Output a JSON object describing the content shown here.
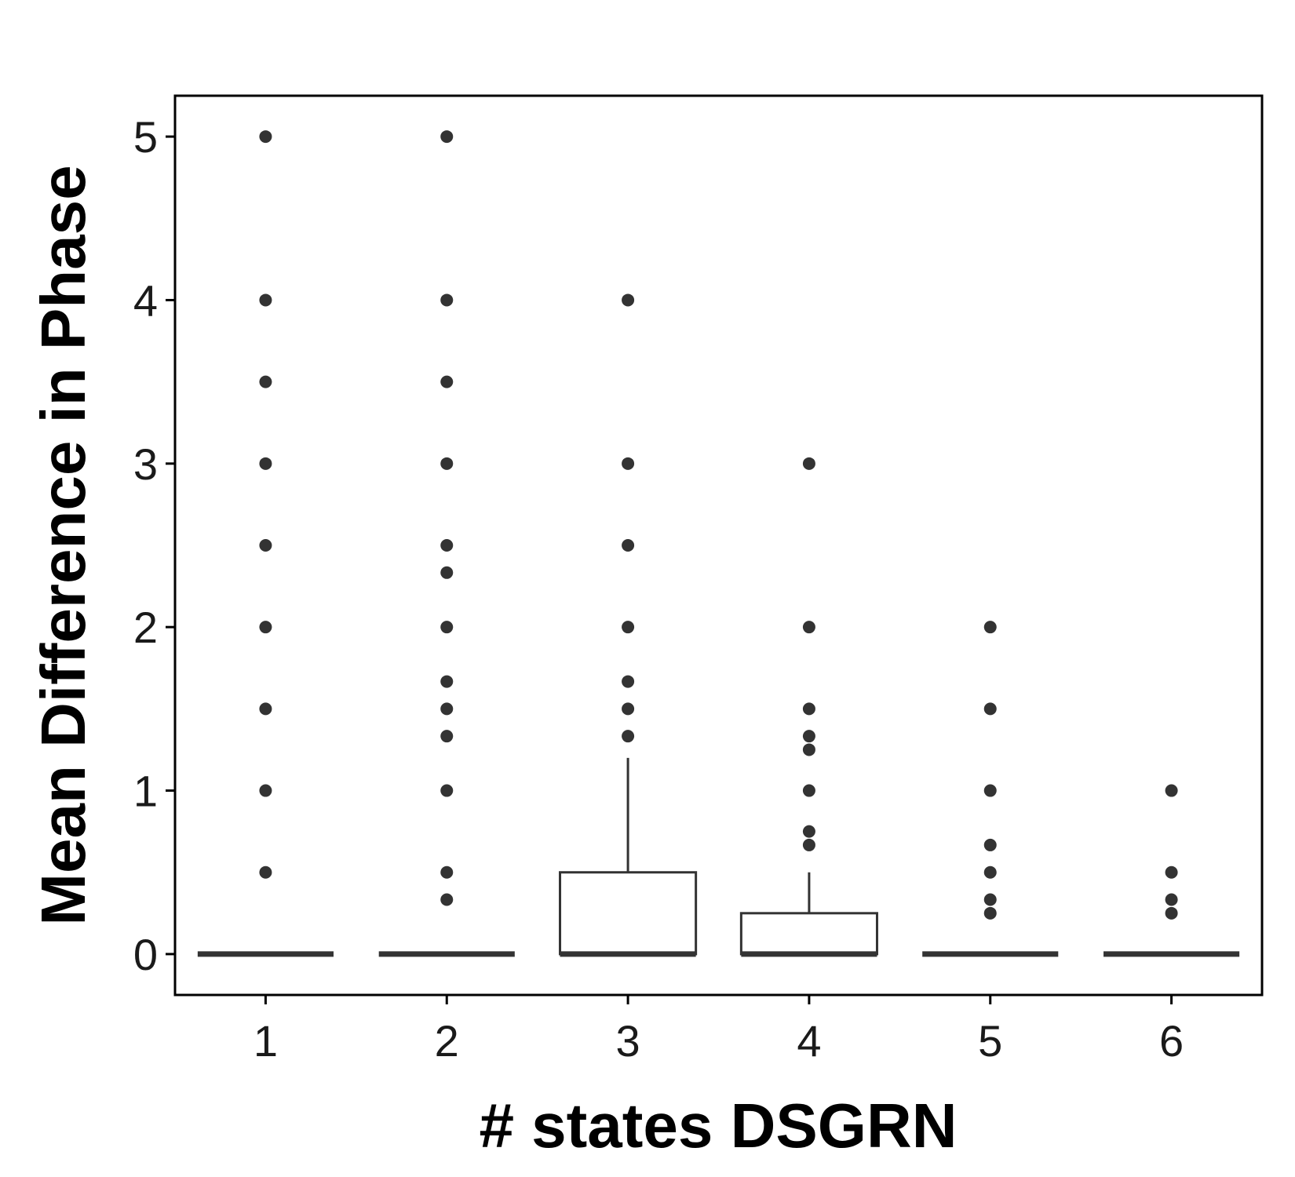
{
  "chart_data": {
    "type": "box",
    "title": "",
    "xlabel": "# states DSGRN",
    "ylabel": "Mean Difference in Phase",
    "ylim": [
      -0.25,
      5.25
    ],
    "yticks": [
      0,
      1,
      2,
      3,
      4,
      5
    ],
    "categories": [
      "1",
      "2",
      "3",
      "4",
      "5",
      "6"
    ],
    "boxes": [
      {
        "category": "1",
        "q1": 0,
        "median": 0,
        "q3": 0,
        "whisker_low": 0,
        "whisker_high": 0,
        "outliers": [
          0.5,
          1,
          1.5,
          2,
          2.5,
          3,
          3.5,
          4,
          5
        ]
      },
      {
        "category": "2",
        "q1": 0,
        "median": 0,
        "q3": 0,
        "whisker_low": 0,
        "whisker_high": 0,
        "outliers": [
          0.333,
          0.5,
          1,
          1.333,
          1.5,
          1.667,
          2,
          2.333,
          2.5,
          3,
          3.5,
          4,
          5
        ]
      },
      {
        "category": "3",
        "q1": 0,
        "median": 0,
        "q3": 0.5,
        "whisker_low": 0,
        "whisker_high": 1.2,
        "outliers": [
          1.333,
          1.5,
          1.667,
          2,
          2.5,
          3,
          4
        ]
      },
      {
        "category": "4",
        "q1": 0,
        "median": 0,
        "q3": 0.25,
        "whisker_low": 0,
        "whisker_high": 0.5,
        "outliers": [
          0.667,
          0.75,
          1,
          1.25,
          1.333,
          1.5,
          2,
          3
        ]
      },
      {
        "category": "5",
        "q1": 0,
        "median": 0,
        "q3": 0,
        "whisker_low": 0,
        "whisker_high": 0,
        "outliers": [
          0.25,
          0.333,
          0.5,
          0.667,
          1,
          1.5,
          2
        ]
      },
      {
        "category": "6",
        "q1": 0,
        "median": 0,
        "q3": 0,
        "whisker_low": 0,
        "whisker_high": 0,
        "outliers": [
          0.25,
          0.333,
          0.5,
          1
        ]
      }
    ],
    "grid": false,
    "legend": "none",
    "colors": {
      "box_line": "#333333",
      "box_fill": "#ffffff",
      "outlier": "#333333",
      "axis": "#000000"
    }
  }
}
